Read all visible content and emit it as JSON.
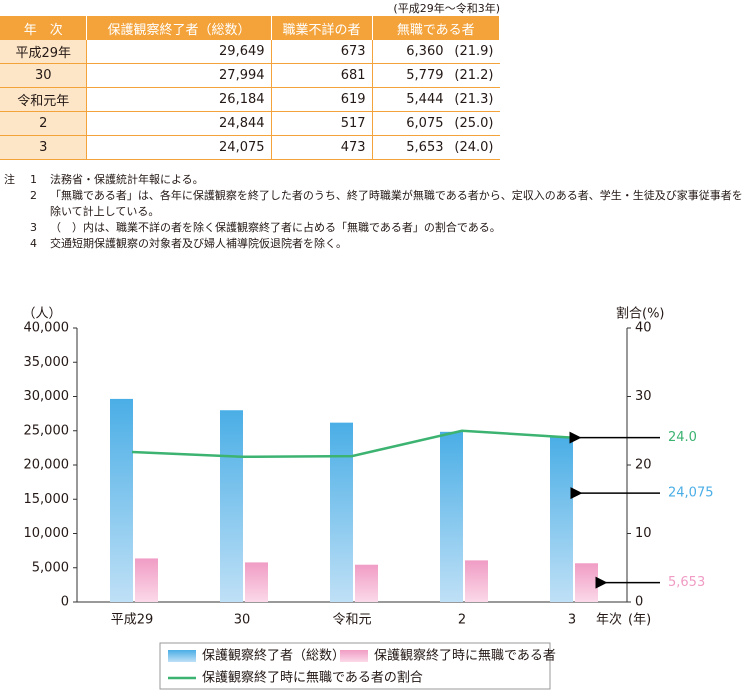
{
  "table": {
    "period": "(平成29年～令和3年)",
    "header": [
      "年　次",
      "保護観察終了者（総数）",
      "職業不詳の者",
      "無職である者"
    ],
    "rows": [
      [
        "平成29年",
        "29,649",
        "673",
        "6,360",
        "(21.9)"
      ],
      [
        "30",
        "27,994",
        "681",
        "5,779",
        "(21.2)"
      ],
      [
        "令和元年",
        "26,184",
        "619",
        "5,444",
        "(21.3)"
      ],
      [
        "2",
        "24,844",
        "517",
        "6,075",
        "(25.0)"
      ],
      [
        "3",
        "24,075",
        "473",
        "5,653",
        "(24.0)"
      ]
    ]
  },
  "notes": {
    "label": "注",
    "items": [
      {
        "num": "1",
        "text": "法務省・保護統計年報による。"
      },
      {
        "num": "2",
        "text": "「無職である者」は、各年に保護観察を終了した者のうち、終了時職業が無職である者から、定収入のある者、学生・生徒及び家事従事者を除いて計上している。"
      },
      {
        "num": "3",
        "text": "（　）内は、職業不詳の者を除く保護観察終了者に占める「無職である者」の割合である。"
      },
      {
        "num": "4",
        "text": "交通短期保護観察の対象者及び婦人補導院仮退院者を除く。"
      }
    ]
  },
  "chart_data": {
    "type": "bar",
    "y_label": "（人）",
    "y2_label": "割合(%)",
    "x_label": "年次",
    "x_unit": "(年)",
    "categories": [
      "平成29",
      "30",
      "令和元",
      "2",
      "3"
    ],
    "series": [
      {
        "name": "保護観察終了者（総数）",
        "color": "#4aaee6",
        "values": [
          29649,
          27994,
          26184,
          24844,
          24075
        ],
        "value_labels": [
          null,
          null,
          null,
          null,
          "24,075"
        ]
      },
      {
        "name": "保護観察終了時に無職である者",
        "color": "#f09cc4",
        "values": [
          6360,
          5779,
          5444,
          6075,
          5653
        ],
        "value_labels": [
          null,
          null,
          null,
          null,
          "5,653"
        ]
      },
      {
        "name": "保護観察終了時に無職である者の割合",
        "type": "line",
        "axis": "y2",
        "color": "#3cb371",
        "values": [
          21.9,
          21.2,
          21.3,
          25.0,
          24.0
        ],
        "value_labels": [
          null,
          null,
          null,
          null,
          "24.0"
        ]
      }
    ],
    "ylim": [
      0,
      40000
    ],
    "yticks": [
      0,
      {
        "value": 5000,
        "label": "5,000"
      },
      {
        "value": 10000,
        "label": "10,000"
      },
      {
        "value": 15000,
        "label": "15,000"
      },
      {
        "value": 20000,
        "label": "20,000"
      },
      {
        "value": 25000,
        "label": "25,000"
      },
      {
        "value": 30000,
        "label": "30,000"
      },
      {
        "value": 35000,
        "label": "35,000"
      },
      {
        "value": 40000,
        "label": "40,000"
      }
    ],
    "y2lim": [
      0,
      40
    ],
    "y2ticks": [
      0,
      10,
      20,
      30,
      40
    ]
  }
}
